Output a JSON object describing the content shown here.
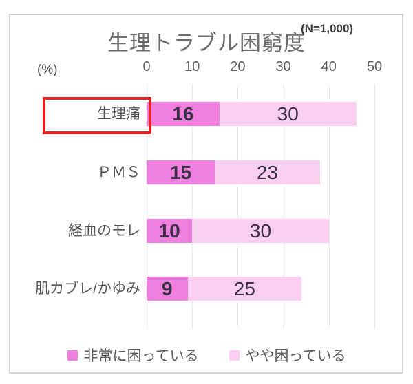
{
  "chart": {
    "title": "生理トラブル困窮度",
    "sample_size": "(N=1,000)",
    "unit_label": "(%)",
    "x_ticks": [
      "0",
      "10",
      "20",
      "30",
      "40",
      "50"
    ]
  },
  "colors": {
    "series_strong": "#f080e0",
    "series_mild": "#fbcff1",
    "highlight_border": "#df2323",
    "title_text": "#6e6e6e",
    "label_text": "#565656",
    "value_text": "#3a3144",
    "gridline": "#eaeaea",
    "frame_border": "#d2d2d2"
  },
  "chart_data": {
    "type": "bar",
    "orientation": "horizontal",
    "stacked": true,
    "title": "生理トラブル困窮度",
    "annotation": "(N=1,000)",
    "xlabel": "(%)",
    "xlim": [
      0,
      50
    ],
    "x_tick_values": [
      0,
      10,
      20,
      30,
      40,
      50
    ],
    "grid": true,
    "legend_position": "bottom",
    "categories": [
      "生理痛",
      "ＰＭＳ",
      "経血のモレ",
      "肌カブレ/かゆみ"
    ],
    "series": [
      {
        "name": "非常に困っている",
        "values": [
          16,
          15,
          10,
          9
        ],
        "color": "#f080e0"
      },
      {
        "name": "やや困っている",
        "values": [
          30,
          23,
          30,
          25
        ],
        "color": "#fbcff1"
      }
    ],
    "highlighted_category": "生理痛"
  }
}
